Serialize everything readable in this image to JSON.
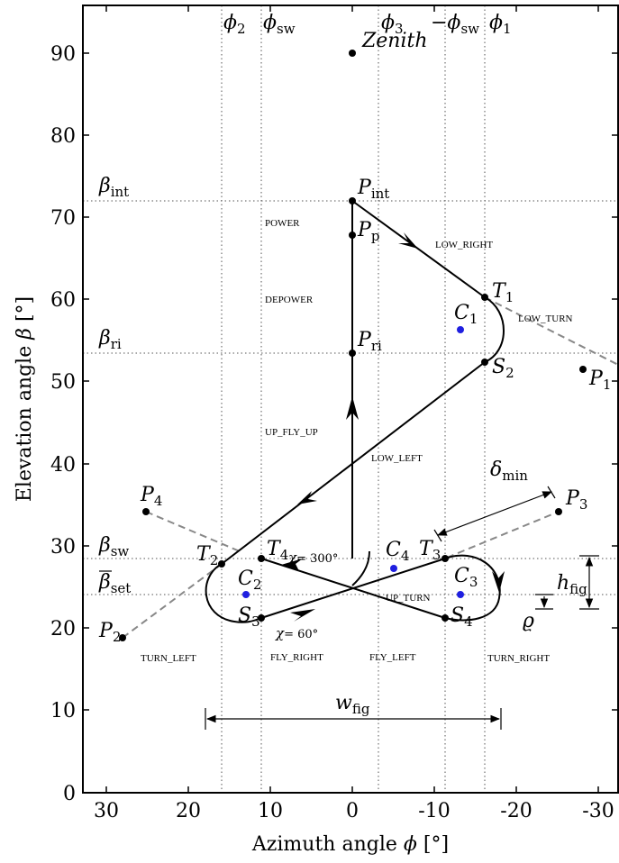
{
  "axes": {
    "x_title": "Azimuth angle",
    "x_symbol": "ϕ",
    "x_unit": "[°]",
    "y_title": "Elevation angle",
    "y_symbol": "β",
    "y_unit": "[°]",
    "x_ticks": [
      "30",
      "20",
      "10",
      "0",
      "-10",
      "-20",
      "-30"
    ],
    "y_ticks": [
      "0",
      "10",
      "20",
      "30",
      "40",
      "50",
      "60",
      "70",
      "80",
      "90"
    ]
  },
  "top_labels": [
    {
      "id": "phi2",
      "base": "ϕ",
      "sub": "2"
    },
    {
      "id": "phisw",
      "base": "ϕ",
      "sub": "sw"
    },
    {
      "id": "phi3",
      "base": "ϕ",
      "sub": "3"
    },
    {
      "id": "negphisw",
      "base": "−ϕ",
      "sub": "sw"
    },
    {
      "id": "phi1",
      "base": "ϕ",
      "sub": "1"
    }
  ],
  "beta_labels": [
    {
      "id": "beta_int",
      "base": "β",
      "sub": "int"
    },
    {
      "id": "beta_ri",
      "base": "β",
      "sub": "ri"
    },
    {
      "id": "beta_sw",
      "base": "β",
      "sub": "sw"
    },
    {
      "id": "beta_set",
      "base": "β",
      "sub": "set"
    }
  ],
  "zenith": "Zenith",
  "points": [
    {
      "id": "P_int",
      "base": "P",
      "sub": "int"
    },
    {
      "id": "P_p",
      "base": "P",
      "sub": "p"
    },
    {
      "id": "P_ri",
      "base": "P",
      "sub": "ri"
    },
    {
      "id": "T1",
      "base": "T",
      "sub": "1"
    },
    {
      "id": "S2",
      "base": "S",
      "sub": "2"
    },
    {
      "id": "P1",
      "base": "P",
      "sub": "1"
    },
    {
      "id": "C1",
      "base": "C",
      "sub": "1"
    },
    {
      "id": "P4",
      "base": "P",
      "sub": "4"
    },
    {
      "id": "P3",
      "base": "P",
      "sub": "3"
    },
    {
      "id": "T2",
      "base": "T",
      "sub": "2"
    },
    {
      "id": "T4",
      "base": "T",
      "sub": "4"
    },
    {
      "id": "T3",
      "base": "T",
      "sub": "3"
    },
    {
      "id": "C2",
      "base": "C",
      "sub": "2"
    },
    {
      "id": "C4",
      "base": "C",
      "sub": "4"
    },
    {
      "id": "C3",
      "base": "C",
      "sub": "3"
    },
    {
      "id": "S3",
      "base": "S",
      "sub": "3"
    },
    {
      "id": "S4",
      "base": "S",
      "sub": "4"
    },
    {
      "id": "P2",
      "base": "P",
      "sub": "2"
    }
  ],
  "regions": {
    "power": "POWER",
    "depower": "DEPOWER",
    "low_right": "LOW_RIGHT",
    "low_turn": "LOW_TURN",
    "up_fly_up": "UP_FLY_UP",
    "low_left": "LOW_LEFT",
    "up_turn": "UP_TURN",
    "turn_left": "TURN_LEFT",
    "fly_right": "FLY_RIGHT",
    "fly_left": "FLY_LEFT",
    "turn_right": "TURN_RIGHT"
  },
  "annotations": {
    "chi_300": {
      "symbol": "χ",
      "value": "= 300°"
    },
    "chi_60": {
      "symbol": "χ",
      "value": "= 60°"
    },
    "delta_min": {
      "base": "δ",
      "sub": "min"
    },
    "h_fig": {
      "base": "h",
      "sub": "fig"
    },
    "rho": "ϱ",
    "w_fig": {
      "base": "w",
      "sub": "fig"
    }
  },
  "colors": {
    "path": "#000000",
    "center_points": "#1f1fe0",
    "dashed_lines": "#888888",
    "grid": "#555555"
  }
}
